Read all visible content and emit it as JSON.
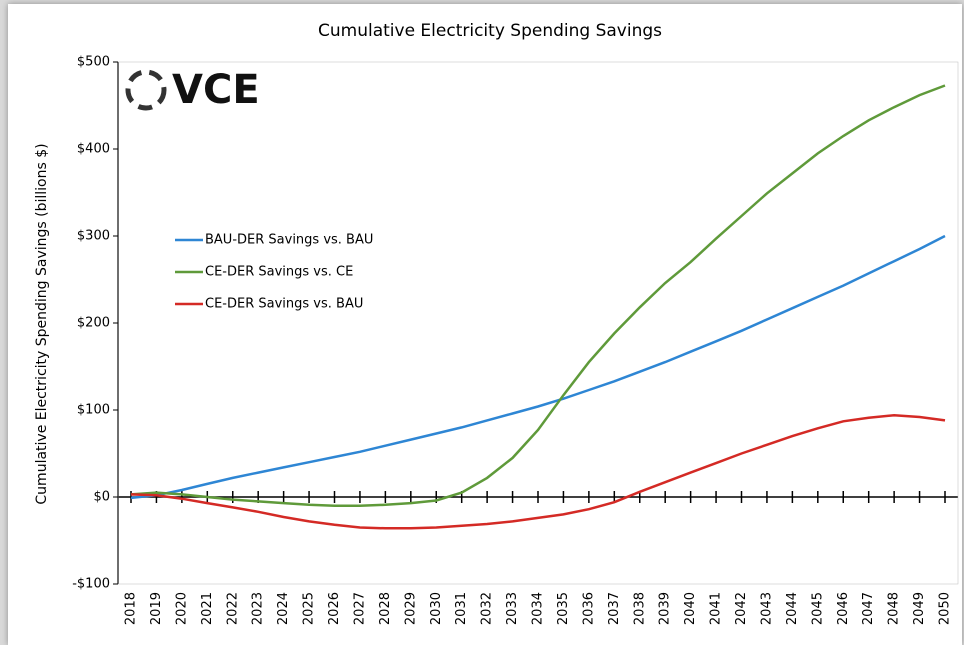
{
  "chart_data": {
    "type": "line",
    "title": "Cumulative Electricity Spending Savings",
    "y_label": "Cumulative Electricity Spending Savings (billions $)",
    "logo_text": "VCE",
    "categories": [
      "2018",
      "2019",
      "2020",
      "2021",
      "2022",
      "2023",
      "2024",
      "2025",
      "2026",
      "2027",
      "2028",
      "2029",
      "2030",
      "2031",
      "2032",
      "2033",
      "2034",
      "2035",
      "2036",
      "2037",
      "2038",
      "2039",
      "2040",
      "2041",
      "2042",
      "2043",
      "2044",
      "2045",
      "2046",
      "2047",
      "2048",
      "2049",
      "2050"
    ],
    "series": [
      {
        "name": "BAU-DER Savings vs. BAU",
        "color": "#2e86d4",
        "values": [
          -1,
          2,
          8,
          15,
          22,
          28,
          34,
          40,
          46,
          52,
          59,
          66,
          73,
          80,
          88,
          96,
          104,
          113,
          123,
          133,
          144,
          155,
          167,
          179,
          191,
          204,
          217,
          230,
          243,
          257,
          271,
          285,
          300
        ]
      },
      {
        "name": "CE-DER Savings vs. CE",
        "color": "#5f9a3a",
        "values": [
          3,
          5,
          3,
          0,
          -3,
          -5,
          -7,
          -9,
          -10,
          -10,
          -9,
          -7,
          -4,
          5,
          22,
          45,
          77,
          117,
          155,
          188,
          218,
          246,
          270,
          297,
          323,
          349,
          372,
          395,
          415,
          433,
          448,
          462,
          473
        ]
      },
      {
        "name": "CE-DER Savings vs. BAU",
        "color": "#d42a25",
        "values": [
          3,
          2,
          -2,
          -7,
          -12,
          -17,
          -23,
          -28,
          -32,
          -35,
          -36,
          -36,
          -35,
          -33,
          -31,
          -28,
          -24,
          -20,
          -14,
          -6,
          6,
          17,
          28,
          39,
          50,
          60,
          70,
          79,
          87,
          91,
          94,
          92,
          88
        ]
      }
    ],
    "ylim": [
      -100,
      500
    ],
    "yticks": [
      {
        "value": -100,
        "label": "-$100"
      },
      {
        "value": 0,
        "label": "$0"
      },
      {
        "value": 100,
        "label": "$100"
      },
      {
        "value": 200,
        "label": "$200"
      },
      {
        "value": 300,
        "label": "$300"
      },
      {
        "value": 400,
        "label": "$400"
      },
      {
        "value": 500,
        "label": "$500"
      }
    ],
    "grid": false
  }
}
